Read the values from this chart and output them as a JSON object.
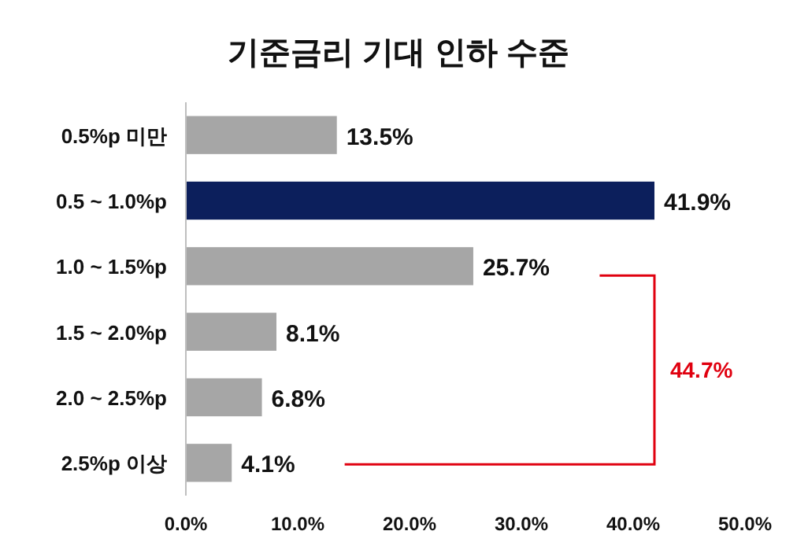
{
  "chart_data": {
    "type": "bar",
    "orientation": "horizontal",
    "title": "기준금리 기대 인하 수준",
    "categories": [
      "0.5%p 미만",
      "0.5 ~ 1.0%p",
      "1.0 ~ 1.5%p",
      "1.5 ~ 2.0%p",
      "2.0 ~ 2.5%p",
      "2.5%p 이상"
    ],
    "values": [
      13.5,
      41.9,
      25.7,
      8.1,
      6.8,
      4.1
    ],
    "value_labels": [
      "13.5%",
      "41.9%",
      "25.7%",
      "8.1%",
      "6.8%",
      "4.1%"
    ],
    "colors": [
      "#a6a6a6",
      "#0c1f5c",
      "#a6a6a6",
      "#a6a6a6",
      "#a6a6a6",
      "#a6a6a6"
    ],
    "xlim": [
      0,
      50
    ],
    "xticks": [
      {
        "value": 0,
        "label": "0.0%"
      },
      {
        "value": 10,
        "label": "10.0%"
      },
      {
        "value": 20,
        "label": "20.0%"
      },
      {
        "value": 30,
        "label": "30.0%"
      },
      {
        "value": 40,
        "label": "40.0%"
      },
      {
        "value": 50,
        "label": "50.0%"
      }
    ],
    "annotations": [
      "44.7%"
    ],
    "grid": false
  }
}
